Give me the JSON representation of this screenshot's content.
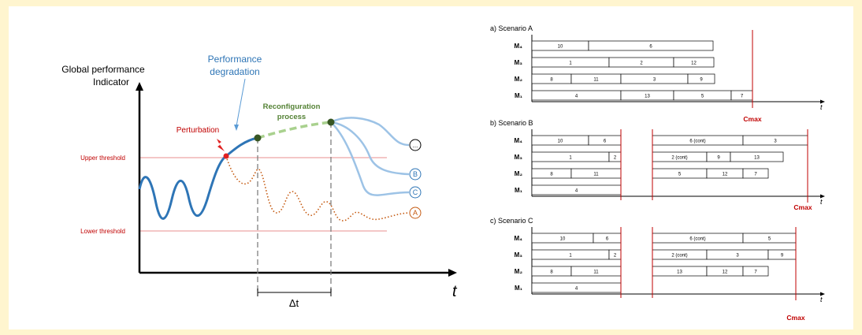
{
  "colors": {
    "background": "#fff5cf",
    "accent_blue": "#2e75b6",
    "perturbation_red": "#c00000",
    "reconfig_green": "#548235",
    "degraded_orange": "#c55a11",
    "light_blue": "#9dc3e6",
    "threshold_pink": "#f4c7c7",
    "cmax_red": "#c00000"
  },
  "left": {
    "y_label_1": "Global performance",
    "y_label_2": "Indicator",
    "x_label": "t",
    "upper_threshold": "Upper threshold",
    "lower_threshold": "Lower threshold",
    "perturbation": "Perturbation",
    "degradation_1": "Performance",
    "degradation_2": "degradation",
    "reconfig_1": "Reconfiguration",
    "reconfig_2": "process",
    "delta_t": "Δt",
    "outcomes": [
      "...",
      "B",
      "C",
      "A"
    ]
  },
  "scenarios": [
    {
      "title": "a) Scenario A",
      "cmax": "Cmax",
      "t_label": "t",
      "machines": [
        "M4",
        "M3",
        "M2",
        "M1"
      ],
      "rows": [
        [
          [
            "10",
            0,
            72
          ],
          [
            "6",
            72,
            230
          ]
        ],
        [
          [
            "1",
            0,
            98
          ],
          [
            "2",
            98,
            180
          ],
          [
            "12",
            180,
            231
          ]
        ],
        [
          [
            "8",
            0,
            50
          ],
          [
            "11",
            50,
            113
          ],
          [
            "3",
            113,
            198
          ],
          [
            "9",
            198,
            232
          ]
        ],
        [
          [
            "4",
            0,
            113
          ],
          [
            "13",
            113,
            180
          ],
          [
            "5",
            180,
            253
          ],
          [
            "7",
            253,
            280
          ]
        ]
      ],
      "breaks": [],
      "cmax_x": 280
    },
    {
      "title": "b) Scenario B",
      "cmax": "Cmax",
      "t_label": "t",
      "machines": [
        "M4",
        "M3",
        "M2",
        "M1"
      ],
      "rows": [
        [
          [
            "10",
            0,
            72
          ],
          [
            "6",
            72,
            113
          ],
          [
            "6 (cont)",
            153,
            268
          ],
          [
            "3",
            268,
            350
          ]
        ],
        [
          [
            "1",
            0,
            98
          ],
          [
            "2",
            98,
            113
          ],
          [
            "2 (cont)",
            153,
            222
          ],
          [
            "9",
            222,
            252
          ],
          [
            "13",
            252,
            319
          ]
        ],
        [
          [
            "8",
            0,
            50
          ],
          [
            "11",
            50,
            113
          ],
          [
            "5",
            153,
            222
          ],
          [
            "12",
            222,
            268
          ],
          [
            "7",
            268,
            300
          ]
        ],
        [
          [
            "4",
            0,
            113
          ]
        ]
      ],
      "breaks": [
        113,
        153
      ],
      "cmax_x": 350
    },
    {
      "title": "c) Scenario C",
      "cmax": "Cmax",
      "t_label": "t",
      "machines": [
        "M4",
        "M3",
        "M2",
        "M1"
      ],
      "rows": [
        [
          [
            "10",
            0,
            78
          ],
          [
            "6",
            78,
            113
          ],
          [
            "6 (cont)",
            153,
            268
          ],
          [
            "5",
            268,
            335
          ]
        ],
        [
          [
            "1",
            0,
            98
          ],
          [
            "2",
            98,
            113
          ],
          [
            "2 (cont)",
            153,
            222
          ],
          [
            "3",
            222,
            300
          ],
          [
            "9",
            300,
            335
          ]
        ],
        [
          [
            "8",
            0,
            50
          ],
          [
            "11",
            50,
            113
          ],
          [
            "13",
            153,
            222
          ],
          [
            "12",
            222,
            268
          ],
          [
            "7",
            268,
            300
          ]
        ],
        [
          [
            "4",
            0,
            113
          ]
        ]
      ],
      "breaks": [
        113,
        153
      ],
      "cmax_x": 335
    }
  ]
}
